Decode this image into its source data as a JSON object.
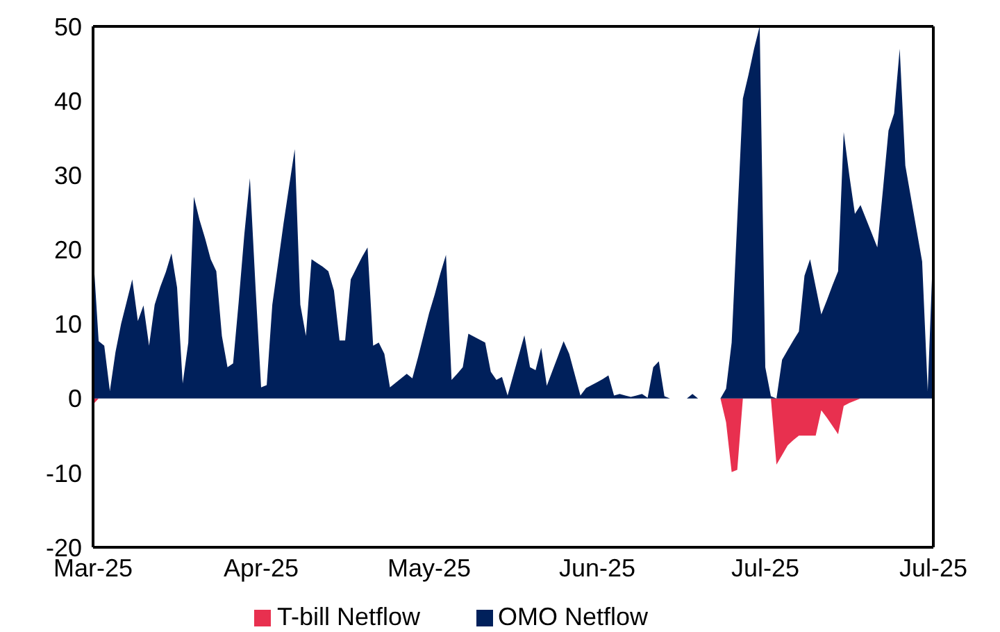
{
  "chart_data": {
    "type": "area",
    "categories": [
      "Mar-25",
      null,
      null,
      null,
      null,
      null,
      null,
      null,
      null,
      null,
      null,
      null,
      null,
      null,
      null,
      null,
      null,
      null,
      null,
      null,
      null,
      null,
      null,
      null,
      null,
      null,
      null,
      null,
      null,
      null,
      "Apr-25",
      null,
      null,
      null,
      null,
      null,
      null,
      null,
      null,
      null,
      null,
      null,
      null,
      null,
      null,
      null,
      null,
      null,
      null,
      null,
      null,
      null,
      null,
      null,
      null,
      null,
      null,
      null,
      null,
      null,
      "May-25",
      null,
      null,
      null,
      null,
      null,
      null,
      null,
      null,
      null,
      null,
      null,
      null,
      null,
      null,
      null,
      null,
      null,
      null,
      null,
      null,
      null,
      null,
      null,
      null,
      null,
      null,
      null,
      null,
      null,
      "Jun-25",
      null,
      null,
      null,
      null,
      null,
      null,
      null,
      null,
      null,
      null,
      null,
      null,
      null,
      null,
      null,
      null,
      null,
      null,
      null,
      null,
      null,
      null,
      null,
      null,
      null,
      null,
      null,
      null,
      null,
      "Jul-25",
      null,
      null,
      null,
      null,
      null,
      null,
      null,
      null,
      null,
      null,
      null,
      null,
      null,
      null,
      null,
      null,
      null,
      null,
      null,
      null,
      null,
      null,
      null,
      null,
      null,
      null,
      null,
      null,
      null,
      "Jul-25"
    ],
    "series": [
      {
        "name": "T-bill Netflow",
        "color": "#e8304f",
        "values": [
          -0.8,
          0,
          0,
          0,
          0,
          0,
          0,
          0,
          0,
          0,
          0,
          0,
          0,
          0,
          0,
          0,
          0,
          0,
          0,
          0,
          0,
          0,
          0,
          0,
          0,
          0,
          0,
          0,
          0,
          0,
          0,
          0,
          0,
          0,
          0,
          0,
          0,
          0,
          0,
          0,
          0,
          0,
          0,
          0,
          0,
          0,
          0,
          0,
          0,
          0,
          0,
          0,
          0,
          0,
          0,
          0,
          0,
          0,
          0,
          0,
          0,
          0,
          0,
          0,
          0,
          0,
          0,
          0,
          0,
          0,
          0,
          0,
          0,
          0,
          0,
          0,
          0,
          0,
          0,
          0,
          0,
          0,
          0,
          0,
          0,
          0,
          0,
          0,
          0,
          0,
          0,
          0,
          0,
          0,
          0,
          0,
          0,
          0,
          0,
          0,
          0,
          0,
          0,
          0,
          0,
          0,
          0,
          0,
          0,
          0,
          0,
          0,
          0,
          -3.2,
          -9.9,
          -9.6,
          0,
          0,
          0,
          0,
          0,
          0,
          -8.9,
          -7.6,
          -6.3,
          -5.6,
          -5,
          -5,
          -5,
          -5,
          -1.6,
          -2.6,
          -3.7,
          -4.8,
          -1,
          -0.6,
          -0.3,
          0,
          0,
          0,
          0,
          0,
          0,
          0,
          0,
          0,
          0,
          0,
          0,
          0,
          0
        ]
      },
      {
        "name": "OMO Netflow",
        "color": "#00205b",
        "values": [
          19.7,
          7.7,
          7.1,
          1,
          6.2,
          10,
          13,
          16,
          10.4,
          12.5,
          7.1,
          12.6,
          15,
          17,
          19.5,
          14.9,
          2,
          7.5,
          27.1,
          24,
          21.5,
          18.7,
          17.1,
          8.4,
          4.2,
          4.7,
          13,
          22,
          29.6,
          15,
          1.5,
          1.8,
          12.6,
          18,
          23.5,
          28.5,
          33.5,
          12.6,
          8.4,
          18.7,
          18.2,
          17.7,
          17.1,
          14.5,
          7.8,
          7.8,
          16,
          17.5,
          19,
          20.3,
          7.1,
          7.5,
          6,
          1.5,
          2.1,
          2.7,
          3.3,
          2.7,
          5.5,
          8.5,
          11.5,
          14,
          16.8,
          19.3,
          2.5,
          3.3,
          4.2,
          8.7,
          8.3,
          7.9,
          7.5,
          3.6,
          2.5,
          2.9,
          0.4,
          3.1,
          5.8,
          8.5,
          4.2,
          3.8,
          6.8,
          1.7,
          3.7,
          5.7,
          7.7,
          6,
          3.2,
          0.4,
          1.4,
          1.8,
          2.2,
          2.6,
          3.1,
          0.4,
          0.6,
          0.4,
          0.2,
          0.4,
          0.6,
          0.1,
          4.2,
          5,
          0.3,
          0,
          0,
          0,
          0,
          0.6,
          0,
          0,
          0,
          0,
          0,
          1.3,
          7.5,
          24,
          40.3,
          43.5,
          47,
          50,
          4.2,
          0.3,
          0,
          5.2,
          6.5,
          7.8,
          9,
          16.5,
          18.7,
          15,
          11.3,
          13.2,
          15.2,
          17.1,
          35.8,
          30,
          24.8,
          26,
          24.1,
          22.2,
          20.3,
          28,
          36,
          38.3,
          47,
          31.3,
          27,
          22.7,
          18.4,
          1,
          21
        ]
      }
    ],
    "ylim": [
      -20,
      50
    ],
    "yticks": [
      -20,
      -10,
      0,
      10,
      20,
      30,
      40,
      50
    ],
    "legend": "bottom"
  }
}
